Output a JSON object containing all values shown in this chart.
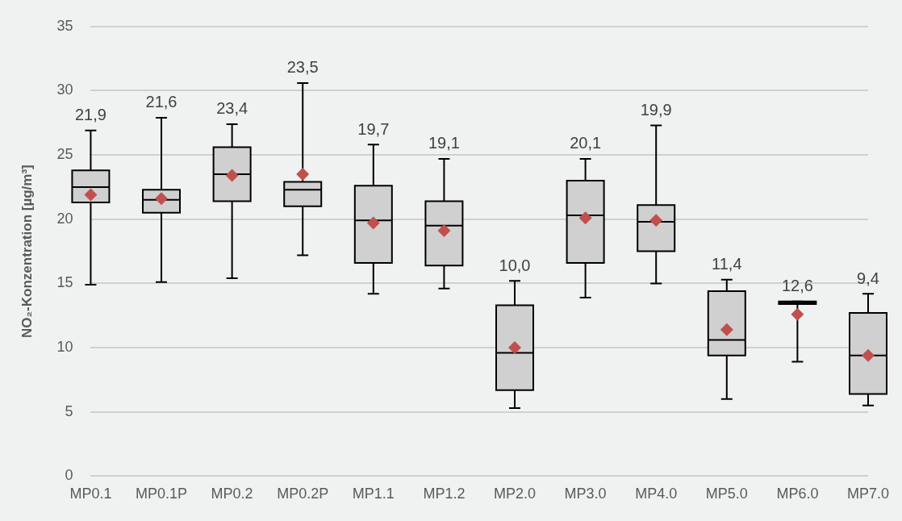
{
  "chart_data": {
    "type": "box",
    "ylabel": "NO₂-Konzentration [µg/m³]",
    "categories": [
      "MP0.1",
      "MP0.1P",
      "MP0.2",
      "MP0.2P",
      "MP1.1",
      "MP1.2",
      "MP2.0",
      "MP3.0",
      "MP4.0",
      "MP5.0",
      "MP6.0",
      "MP7.0"
    ],
    "series": [
      {
        "color": "#d0d0d0",
        "boxes": [
          {
            "low": 14.9,
            "q1": 21.3,
            "median": 22.5,
            "q3": 23.8,
            "high": 26.9,
            "mean": 21.9
          },
          {
            "low": 15.1,
            "q1": 20.5,
            "median": 21.5,
            "q3": 22.3,
            "high": 27.9,
            "mean": 21.6
          },
          {
            "low": 15.4,
            "q1": 21.4,
            "median": 23.5,
            "q3": 25.6,
            "high": 27.4,
            "mean": 23.4
          },
          {
            "low": 17.2,
            "q1": 21.0,
            "median": 22.3,
            "q3": 22.9,
            "high": 30.6,
            "mean": 23.5
          },
          {
            "low": 14.2,
            "q1": 16.6,
            "median": 19.9,
            "q3": 22.6,
            "high": 25.8,
            "mean": 19.7
          },
          {
            "low": 14.6,
            "q1": 16.4,
            "median": 19.5,
            "q3": 21.4,
            "high": 24.7,
            "mean": 19.1
          },
          {
            "low": 5.3,
            "q1": 6.7,
            "median": 9.6,
            "q3": 13.3,
            "high": 15.2,
            "mean": 10.0
          },
          {
            "low": 13.9,
            "q1": 16.6,
            "median": 20.3,
            "q3": 23.0,
            "high": 24.7,
            "mean": 20.1
          },
          {
            "low": 15.0,
            "q1": 17.5,
            "median": 19.8,
            "q3": 21.1,
            "high": 27.3,
            "mean": 19.9
          },
          {
            "low": 6.0,
            "q1": 9.4,
            "median": 10.6,
            "q3": 14.4,
            "high": 15.3,
            "mean": 11.4
          },
          {
            "low": 8.9,
            "q1": 13.4,
            "median": 13.5,
            "q3": 13.6,
            "high": 13.6,
            "mean": 12.6
          },
          {
            "low": 5.5,
            "q1": 6.4,
            "median": 9.4,
            "q3": 12.7,
            "high": 14.2,
            "mean": 9.4
          }
        ]
      }
    ],
    "annotations": [
      {
        "text": "21,9",
        "x": "MP0.1",
        "y": 26.9
      },
      {
        "text": "21,6",
        "x": "MP0.1P",
        "y": 27.9
      },
      {
        "text": "23,4",
        "x": "MP0.2",
        "y": 27.4
      },
      {
        "text": "23,5",
        "x": "MP0.2P",
        "y": 30.6
      },
      {
        "text": "19,7",
        "x": "MP1.1",
        "y": 25.8
      },
      {
        "text": "19,1",
        "x": "MP1.2",
        "y": 24.7
      },
      {
        "text": "10,0",
        "x": "MP2.0",
        "y": 15.2
      },
      {
        "text": "20,1",
        "x": "MP3.0",
        "y": 24.7
      },
      {
        "text": "19,9",
        "x": "MP4.0",
        "y": 27.3
      },
      {
        "text": "11,4",
        "x": "MP5.0",
        "y": 15.3
      },
      {
        "text": "12,6",
        "x": "MP6.0",
        "y": 13.6
      },
      {
        "text": "9,4",
        "x": "MP7.0",
        "y": 14.2
      }
    ],
    "ylim": [
      0,
      35
    ],
    "yticks": [
      0,
      5,
      10,
      15,
      20,
      25,
      30,
      35
    ],
    "grid": "y",
    "legend": false,
    "marker": "diamond"
  }
}
